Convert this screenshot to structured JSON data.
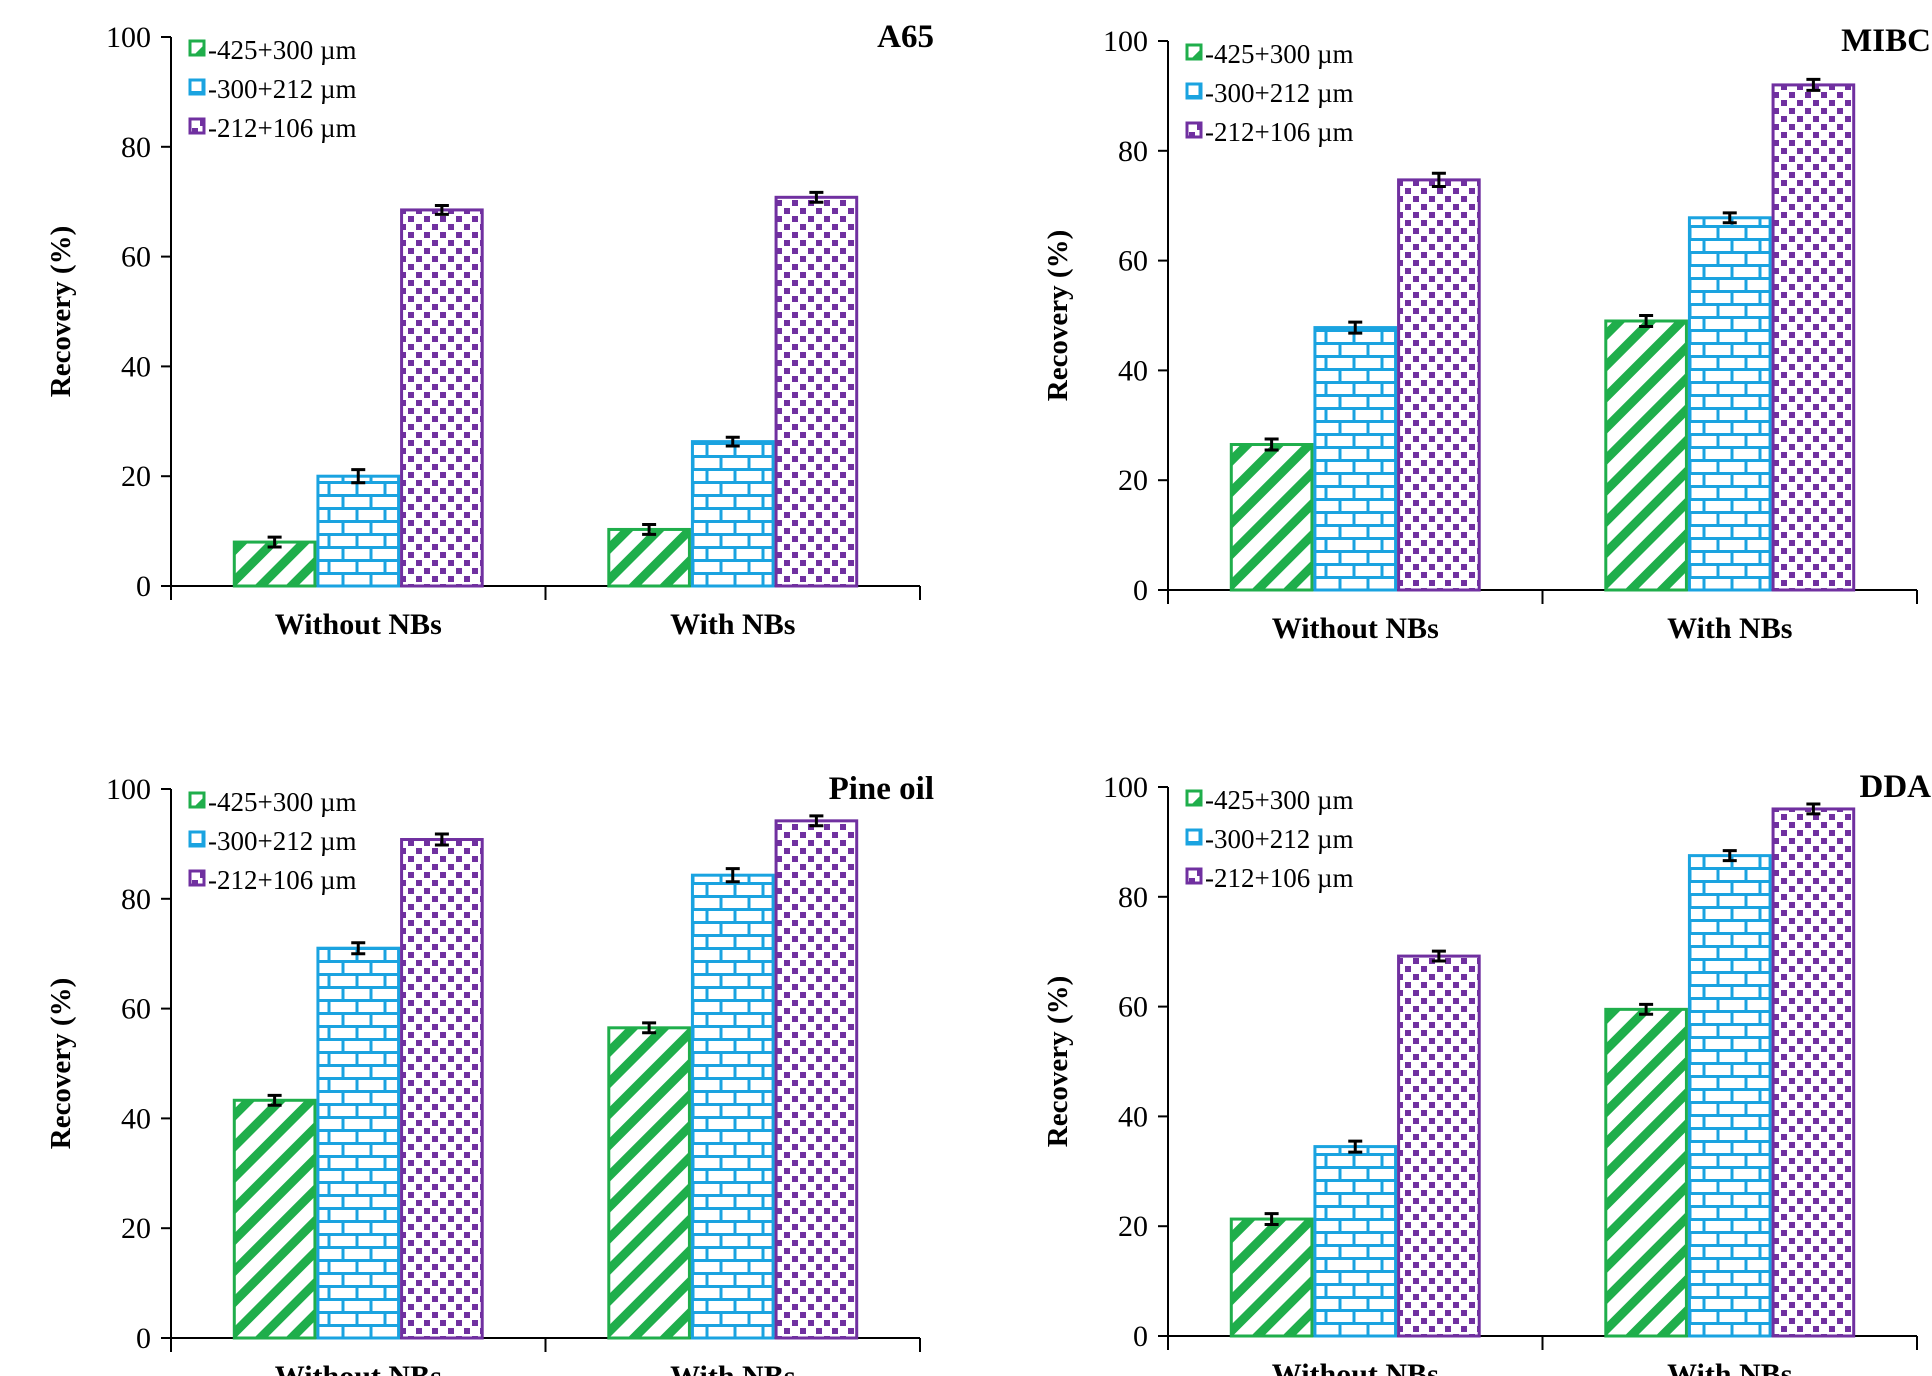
{
  "colors": {
    "green": "#1fae4b",
    "blue": "#1aa3e0",
    "purple": "#7030a0",
    "axis": "#000000"
  },
  "chart_data": [
    {
      "type": "bar",
      "title": "A65",
      "ylabel": "Recovery (%)",
      "ylim": [
        0,
        100
      ],
      "yticks": [
        0,
        20,
        40,
        60,
        80,
        100
      ],
      "categories": [
        "Without NBs",
        "With NBs"
      ],
      "legend_position": "top-left",
      "series": [
        {
          "name": "-425+300 µm",
          "values": [
            8.0,
            10.3
          ],
          "errors": [
            0.9,
            0.9
          ],
          "pattern": "diagonal-stripes",
          "color": "#1fae4b"
        },
        {
          "name": "-300+212 µm",
          "values": [
            20.0,
            26.3
          ],
          "errors": [
            1.2,
            0.8
          ],
          "pattern": "brick",
          "color": "#1aa3e0"
        },
        {
          "name": "-212+106 µm",
          "values": [
            68.5,
            70.8
          ],
          "errors": [
            0.8,
            0.9
          ],
          "pattern": "checker",
          "color": "#7030a0"
        }
      ]
    },
    {
      "type": "bar",
      "title": "MIBC",
      "ylabel": "Recovery (%)",
      "ylim": [
        0,
        100
      ],
      "yticks": [
        0,
        20,
        40,
        60,
        80,
        100
      ],
      "categories": [
        "Without NBs",
        "With NBs"
      ],
      "legend_position": "top-left",
      "series": [
        {
          "name": "-425+300 µm",
          "values": [
            26.5,
            49.0
          ],
          "errors": [
            1.0,
            1.0
          ],
          "pattern": "diagonal-stripes",
          "color": "#1fae4b"
        },
        {
          "name": "-300+212 µm",
          "values": [
            47.8,
            67.8
          ],
          "errors": [
            1.0,
            0.9
          ],
          "pattern": "brick",
          "color": "#1aa3e0"
        },
        {
          "name": "-212+106 µm",
          "values": [
            74.7,
            92.0
          ],
          "errors": [
            1.2,
            1.0
          ],
          "pattern": "checker",
          "color": "#7030a0"
        }
      ]
    },
    {
      "type": "bar",
      "title": "Pine oil",
      "ylabel": "Recovery (%)",
      "ylim": [
        0,
        100
      ],
      "yticks": [
        0,
        20,
        40,
        60,
        80,
        100
      ],
      "categories": [
        "Without NBs",
        "With NBs"
      ],
      "legend_position": "top-left",
      "series": [
        {
          "name": "-425+300 µm",
          "values": [
            43.3,
            56.5
          ],
          "errors": [
            0.9,
            0.9
          ],
          "pattern": "diagonal-stripes",
          "color": "#1fae4b"
        },
        {
          "name": "-300+212 µm",
          "values": [
            71.0,
            84.3
          ],
          "errors": [
            1.0,
            1.2
          ],
          "pattern": "brick",
          "color": "#1aa3e0"
        },
        {
          "name": "-212+106 µm",
          "values": [
            90.8,
            94.2
          ],
          "errors": [
            1.0,
            0.9
          ],
          "pattern": "checker",
          "color": "#7030a0"
        }
      ]
    },
    {
      "type": "bar",
      "title": "DDA",
      "ylabel": "Recovery (%)",
      "ylim": [
        0,
        100
      ],
      "yticks": [
        0,
        20,
        40,
        60,
        80,
        100
      ],
      "categories": [
        "Without NBs",
        "With NBs"
      ],
      "legend_position": "top-left",
      "series": [
        {
          "name": "-425+300 µm",
          "values": [
            21.3,
            59.5
          ],
          "errors": [
            1.0,
            0.9
          ],
          "pattern": "diagonal-stripes",
          "color": "#1fae4b"
        },
        {
          "name": "-300+212 µm",
          "values": [
            34.5,
            87.5
          ],
          "errors": [
            1.0,
            0.9
          ],
          "pattern": "brick",
          "color": "#1aa3e0"
        },
        {
          "name": "-212+106 µm",
          "values": [
            69.2,
            96.0
          ],
          "errors": [
            0.9,
            0.9
          ],
          "pattern": "checker",
          "color": "#7030a0"
        }
      ]
    }
  ]
}
